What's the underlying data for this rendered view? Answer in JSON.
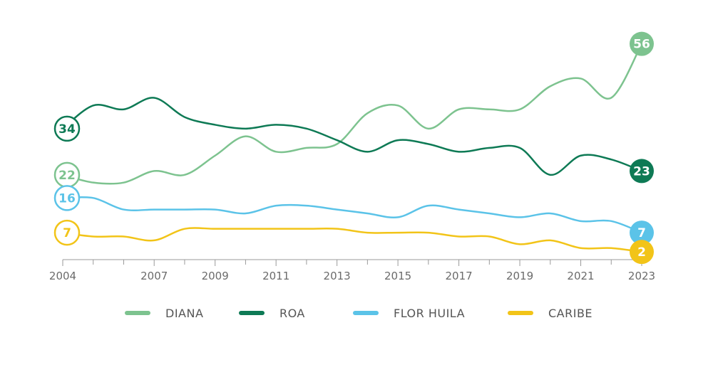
{
  "chart_data": {
    "type": "line",
    "title": "",
    "xlabel": "",
    "ylabel": "",
    "x": [
      2004,
      2005,
      2006,
      2007,
      2008,
      2009,
      2010,
      2011,
      2012,
      2013,
      2014,
      2015,
      2016,
      2017,
      2018,
      2019,
      2020,
      2021,
      2022,
      2023
    ],
    "x_tick_labels": [
      "2004",
      "2007",
      "2009",
      "2011",
      "2013",
      "2015",
      "2017",
      "2019",
      "2021",
      "2023"
    ],
    "x_tick_values": [
      2004,
      2007,
      2009,
      2011,
      2013,
      2015,
      2017,
      2019,
      2021,
      2023
    ],
    "ylim": [
      0,
      60
    ],
    "grid": false,
    "legend_position": "bottom",
    "series": [
      {
        "name": "DIANA",
        "color": "#7DC38F",
        "values": [
          22,
          20,
          20,
          23,
          22,
          27,
          32,
          28,
          29,
          30,
          38,
          40,
          34,
          39,
          39,
          39,
          45,
          47,
          42,
          56
        ],
        "start_label": "22",
        "end_label": "56"
      },
      {
        "name": "ROA",
        "color": "#0E7A55",
        "values": [
          34,
          40,
          39,
          42,
          37,
          35,
          34,
          35,
          34,
          31,
          28,
          31,
          30,
          28,
          29,
          29,
          22,
          27,
          26,
          23
        ],
        "start_label": "34",
        "end_label": "23"
      },
      {
        "name": "FLOR HUILA",
        "color": "#5BC3E8",
        "values": [
          16,
          16,
          13,
          13,
          13,
          13,
          12,
          14,
          14,
          13,
          12,
          11,
          14,
          13,
          12,
          11,
          12,
          10,
          10,
          7
        ],
        "start_label": "16",
        "end_label": "7"
      },
      {
        "name": "CARIBE",
        "color": "#F2C418",
        "values": [
          7,
          6,
          6,
          5,
          8,
          8,
          8,
          8,
          8,
          8,
          7,
          7,
          7,
          6,
          6,
          4,
          5,
          3,
          3,
          2
        ],
        "start_label": "7",
        "end_label": "2"
      }
    ]
  }
}
